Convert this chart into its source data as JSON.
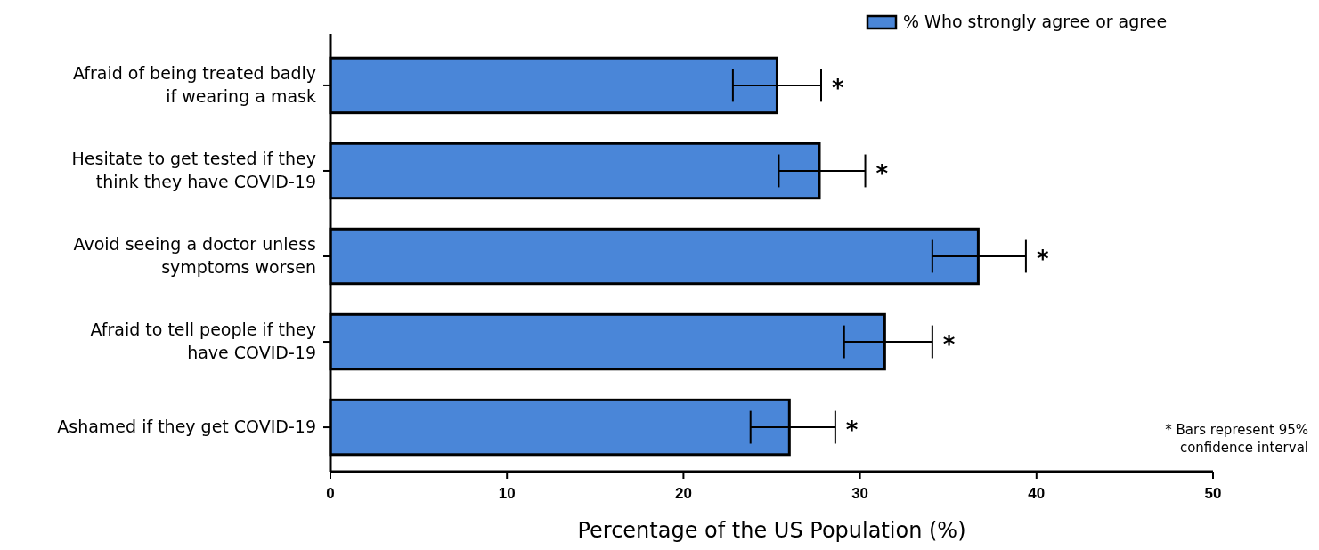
{
  "chart_data": {
    "type": "bar",
    "orientation": "horizontal",
    "xlabel": "Percentage of the US Population (%)",
    "categories": [
      "Afraid of being treated badly if wearing a mask",
      "Hesitate to get tested if they think they have COVID-19",
      "Avoid seeing a doctor unless symptoms worsen",
      "Afraid to tell people if they have COVID-19",
      "Ashamed if they get COVID-19"
    ],
    "series": [
      {
        "name": "% Who strongly agree or agree",
        "color": "#4a86d8",
        "values": [
          25.3,
          27.7,
          36.7,
          31.4,
          26.0
        ],
        "errors": [
          [
            22.8,
            27.8
          ],
          [
            25.4,
            30.3
          ],
          [
            34.1,
            39.4
          ],
          [
            29.1,
            34.1
          ],
          [
            23.8,
            28.6
          ]
        ]
      }
    ],
    "xlim": [
      0,
      50
    ],
    "xticks": [
      0,
      10,
      20,
      30,
      40,
      50
    ],
    "legend": "top right",
    "annotations": [
      {
        "text": "*",
        "x": 27.8,
        "y": "Afraid of being treated badly if wearing a mask"
      },
      {
        "text": "*",
        "x": 30.3,
        "y": "Hesitate to get tested if they think they have COVID-19"
      },
      {
        "text": "*",
        "x": 39.4,
        "y": "Avoid seeing a doctor unless symptoms worsen"
      },
      {
        "text": "*",
        "x": 34.1,
        "y": "Afraid to tell people if they have COVID-19"
      },
      {
        "text": "*",
        "x": 28.6,
        "y": "Ashamed if they get COVID-19"
      },
      "* Bars represent 95% confidence interval"
    ]
  }
}
